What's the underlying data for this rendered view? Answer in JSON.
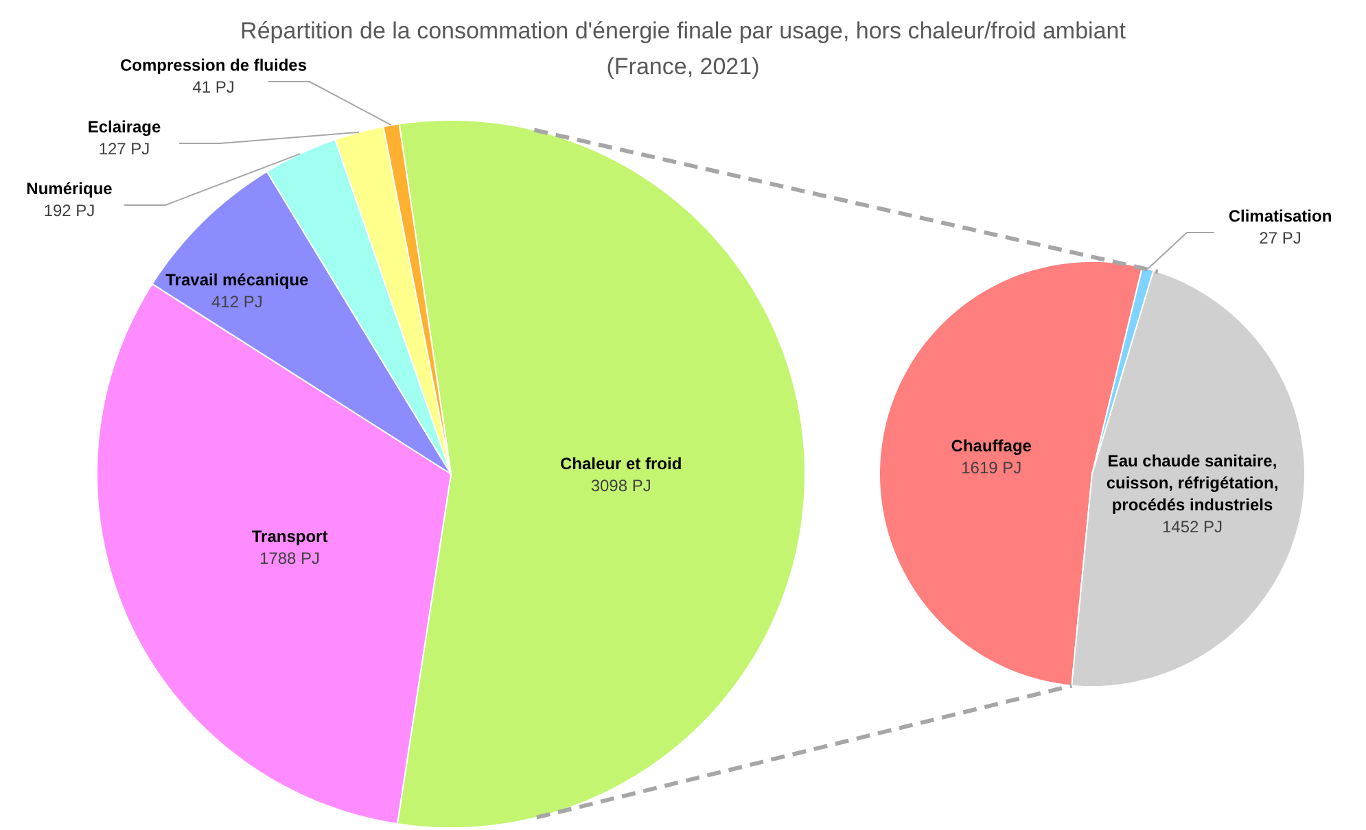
{
  "chart_data": [
    {
      "type": "pie",
      "title": "Répartition de la consommation d'énergie finale par usage, hors chaleur/froid ambiant (France, 2021)",
      "categories": [
        "Chaleur et froid",
        "Transport",
        "Travail mécanique",
        "Numérique",
        "Eclairage",
        "Compression de fluides"
      ],
      "values": [
        3098,
        1788,
        412,
        192,
        127,
        41
      ],
      "colors": [
        "#c4f570",
        "#ff8cff",
        "#8c8cff",
        "#a0fff0",
        "#ffff8c",
        "#ffb030"
      ],
      "value_labels": [
        "3098 PJ",
        "1788 PJ",
        "412 PJ",
        "192 PJ",
        "127 PJ",
        "41 PJ"
      ]
    },
    {
      "type": "pie",
      "categories": [
        "Chauffage",
        "Climatisation",
        "Eau chaude sanitaire, cuisson, réfrigétation, procédés industriels"
      ],
      "values": [
        1619,
        27,
        1452
      ],
      "colors": [
        "#ff7f7f",
        "#7fd4ff",
        "#d0d0d0"
      ],
      "value_labels": [
        "1619 PJ",
        "27 PJ",
        "1452 PJ"
      ]
    }
  ]
}
